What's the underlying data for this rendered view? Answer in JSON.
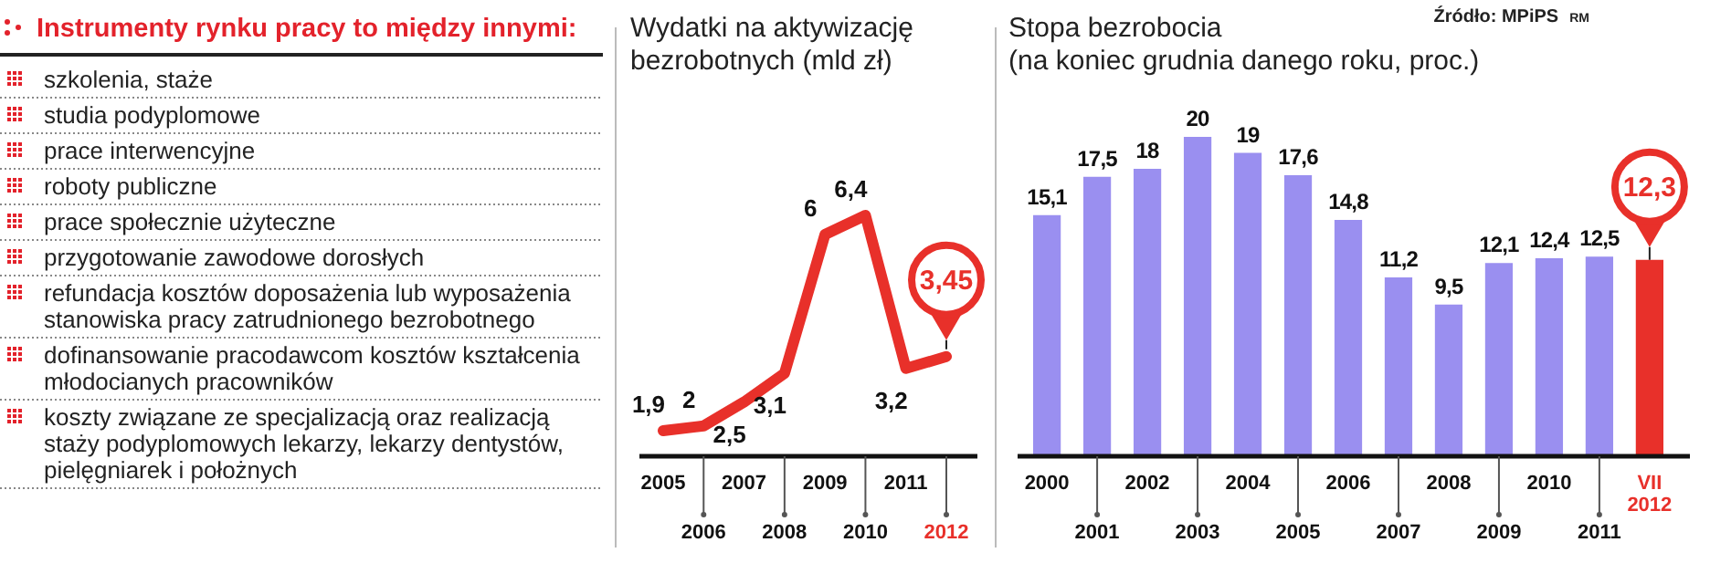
{
  "chart_data": [
    {
      "type": "other",
      "title": "Instrumenty rynku pracy to między innymi:",
      "annotations": [
        "szkolenia, staże",
        "studia podyplomowe",
        "prace interwencyjne",
        "roboty publiczne",
        "prace społecznie użyteczne",
        "przygotowanie zawodowe dorosłych",
        "refundacja kosztów doposażenia lub wyposażenia stanowiska pracy zatrudnionego bezrobotnego",
        "dofinansowanie pracodawcom kosztów kształcenia młodocianych pracowników",
        "koszty związane ze specjalizacją oraz realizacją staży podyplomowych lekarzy, lekarzy dentystów, pielęgniarek i położnych"
      ]
    },
    {
      "type": "line",
      "title": "Wydatki na aktywizację bezrobotnych (mld zł)",
      "categories": [
        "2005",
        "2006",
        "2007",
        "2008",
        "2009",
        "2010",
        "2011",
        "2012"
      ],
      "series": [
        {
          "color": "#e8302a",
          "values": [
            1.9,
            2,
            2.5,
            3.1,
            6,
            6.4,
            3.2,
            3.45
          ],
          "value_labels": [
            "1,9",
            "2",
            "2,5",
            "3,1",
            "6",
            "6,4",
            "3,2",
            "3,45"
          ]
        }
      ],
      "tick_labels": "x",
      "marker": "none",
      "line_style": "solid"
    },
    {
      "type": "bar",
      "title": "Stopa bezrobocia",
      "subtitle": "(na koniec grudnia danego roku, proc.)",
      "categories": [
        "2000",
        "2001",
        "2002",
        "2003",
        "2004",
        "2005",
        "2006",
        "2007",
        "2008",
        "2009",
        "2010",
        "2011",
        "VII 2012"
      ],
      "values": [
        15.1,
        17.5,
        18,
        20,
        19,
        17.6,
        14.8,
        11.2,
        9.5,
        12.1,
        12.4,
        12.5,
        12.3
      ],
      "colors": [
        "#9a8ff0",
        "#9a8ff0",
        "#9a8ff0",
        "#9a8ff0",
        "#9a8ff0",
        "#9a8ff0",
        "#9a8ff0",
        "#9a8ff0",
        "#9a8ff0",
        "#9a8ff0",
        "#9a8ff0",
        "#9a8ff0",
        "#e8302a"
      ],
      "value_labels": [
        "15,1",
        "17,5",
        "18",
        "20",
        "19",
        "17,6",
        "14,8",
        "11,2",
        "9,5",
        "12,1",
        "12,4",
        "12,5",
        "12,3"
      ],
      "tick_labels": "x",
      "annotations": [
        "Źródło: MPiPS",
        "RM"
      ]
    }
  ]
}
